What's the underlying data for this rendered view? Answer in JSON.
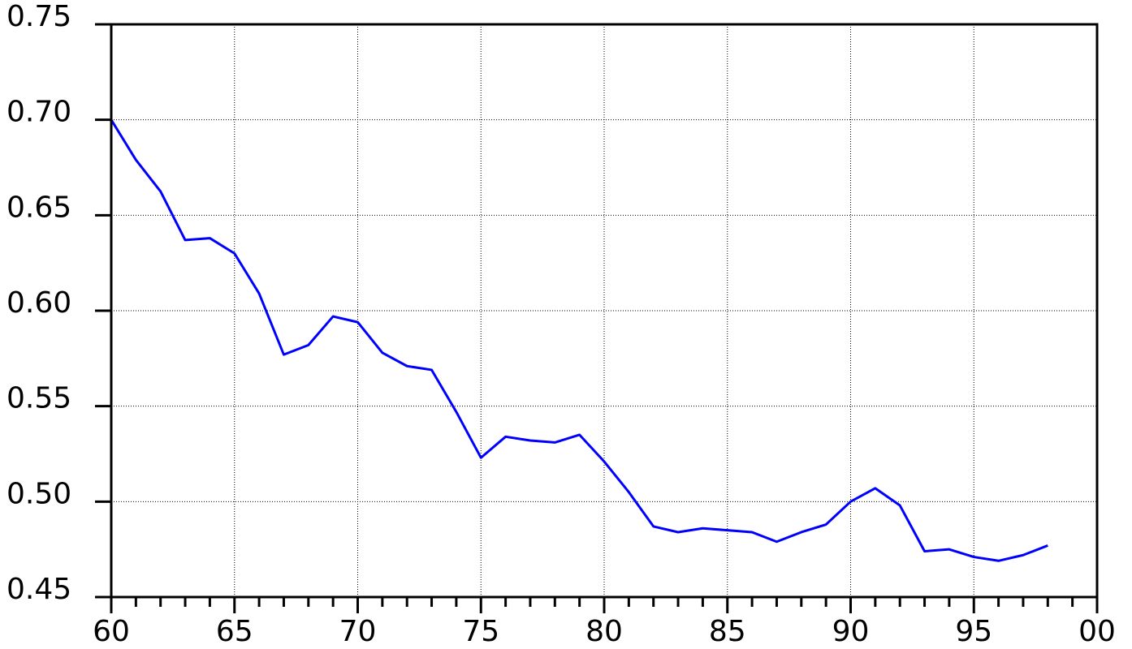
{
  "chart_data": {
    "type": "line",
    "x": [
      1960,
      1961,
      1962,
      1963,
      1964,
      1965,
      1966,
      1967,
      1968,
      1969,
      1970,
      1971,
      1972,
      1973,
      1974,
      1975,
      1976,
      1977,
      1978,
      1979,
      1980,
      1981,
      1982,
      1983,
      1984,
      1985,
      1986,
      1987,
      1988,
      1989,
      1990,
      1991,
      1992,
      1993,
      1994,
      1995,
      1996,
      1997,
      1998
    ],
    "series": [
      {
        "color": "#0000ff",
        "values": [
          0.7,
          0.679,
          0.6625,
          0.637,
          0.638,
          0.63,
          0.609,
          0.577,
          0.582,
          0.597,
          0.594,
          0.578,
          0.571,
          0.569,
          0.547,
          0.523,
          0.534,
          0.532,
          0.531,
          0.535,
          0.521,
          0.505,
          0.487,
          0.484,
          0.486,
          0.485,
          0.484,
          0.479,
          0.484,
          0.488,
          0.5,
          0.507,
          0.498,
          0.474,
          0.475,
          0.471,
          0.469,
          0.472,
          0.477
        ]
      }
    ],
    "xlim": [
      1960,
      2000
    ],
    "xticks": [
      {
        "value": 1960,
        "label": "60"
      },
      {
        "value": 1965,
        "label": "65"
      },
      {
        "value": 1970,
        "label": "70"
      },
      {
        "value": 1975,
        "label": "75"
      },
      {
        "value": 1980,
        "label": "80"
      },
      {
        "value": 1985,
        "label": "85"
      },
      {
        "value": 1990,
        "label": "90"
      },
      {
        "value": 1995,
        "label": "95"
      },
      {
        "value": 2000,
        "label": "00"
      }
    ],
    "ylim": [
      0.45,
      0.75
    ],
    "yticks": [
      0.45,
      {
        "value": 0.5,
        "label": "0.50"
      },
      0.55,
      {
        "value": 0.6,
        "label": "0.60"
      },
      0.65,
      {
        "value": 0.7,
        "label": "0.70"
      },
      0.75
    ],
    "grid": true
  }
}
